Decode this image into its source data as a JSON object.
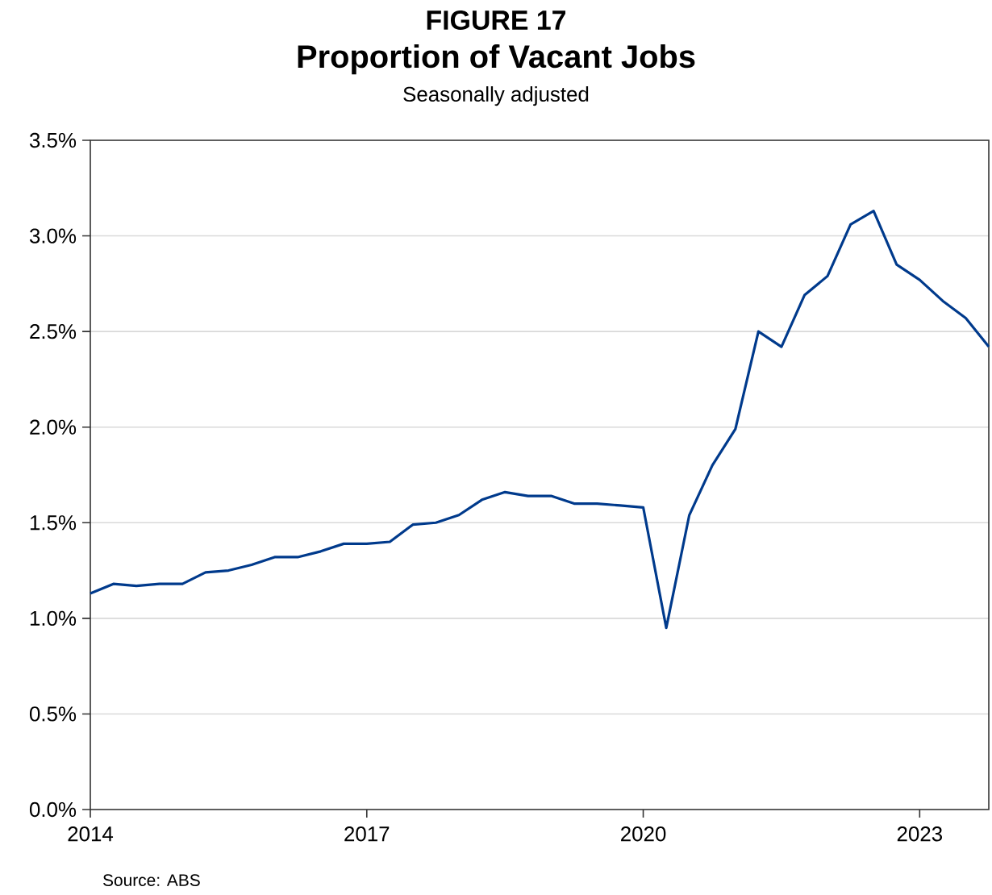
{
  "chart_data": {
    "type": "line",
    "title": "Proportion of Vacant Jobs",
    "subtitle": "Seasonally adjusted",
    "annotations": [
      "FIGURE 17",
      "Source: ABS"
    ],
    "x": [
      2014.0,
      2014.25,
      2014.5,
      2014.75,
      2015.0,
      2015.25,
      2015.5,
      2015.75,
      2016.0,
      2016.25,
      2016.5,
      2016.75,
      2017.0,
      2017.25,
      2017.5,
      2017.75,
      2018.0,
      2018.25,
      2018.5,
      2018.75,
      2019.0,
      2019.25,
      2019.5,
      2019.75,
      2020.0,
      2020.25,
      2020.5,
      2020.75,
      2021.0,
      2021.25,
      2021.5,
      2021.75,
      2022.0,
      2022.25,
      2022.5,
      2022.75,
      2023.0,
      2023.25,
      2023.5,
      2023.75
    ],
    "series": [
      {
        "color": "#003a8c",
        "values": [
          1.13,
          1.18,
          1.17,
          1.18,
          1.18,
          1.24,
          1.25,
          1.28,
          1.32,
          1.32,
          1.35,
          1.39,
          1.39,
          1.4,
          1.49,
          1.5,
          1.54,
          1.62,
          1.66,
          1.64,
          1.64,
          1.6,
          1.6,
          1.59,
          1.58,
          0.95,
          1.54,
          1.8,
          1.99,
          2.5,
          2.42,
          2.69,
          2.79,
          3.06,
          3.13,
          2.85,
          2.77,
          2.66,
          2.57,
          2.42
        ]
      }
    ],
    "xlim": [
      2014,
      2023.75
    ],
    "xticks": [
      2014,
      2017,
      2020,
      2023
    ],
    "ylim": [
      0,
      3.5
    ],
    "yticks": [
      {
        "value": 0,
        "label": "0.0%"
      },
      {
        "value": 0.5,
        "label": "0.5%"
      },
      {
        "value": 1,
        "label": "1.0%"
      },
      {
        "value": 1.5,
        "label": "1.5%"
      },
      {
        "value": 2,
        "label": "2.0%"
      },
      {
        "value": 2.5,
        "label": "2.5%"
      },
      {
        "value": 3,
        "label": "3.0%"
      },
      {
        "value": 3.5,
        "label": "3.5%"
      }
    ],
    "grid": "y",
    "marker": "none",
    "line_style": "solid"
  }
}
